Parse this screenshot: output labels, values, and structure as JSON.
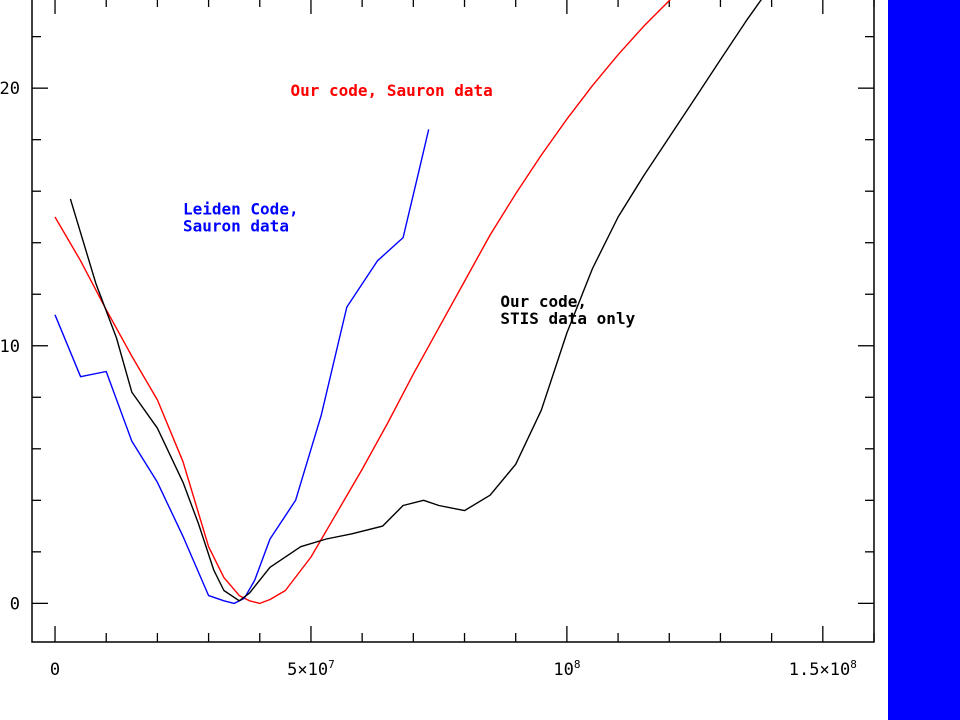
{
  "chart_data": {
    "type": "line",
    "title": "",
    "xlabel": "",
    "ylabel": "",
    "xlim": [
      -4500000,
      160000000
    ],
    "ylim": [
      -1.5,
      23.5
    ],
    "grid": false,
    "legend": "none (inline text annotations)",
    "x_ticks": [
      {
        "value": 0,
        "base": "0",
        "exp": ""
      },
      {
        "value": 50000000,
        "base": "5×10",
        "exp": "7"
      },
      {
        "value": 100000000,
        "base": "10",
        "exp": "8"
      },
      {
        "value": 150000000,
        "base": "1.5×10",
        "exp": "8"
      }
    ],
    "x_minor_step": 10000000,
    "y_ticks": [
      {
        "value": 0,
        "label": "0"
      },
      {
        "value": 10,
        "label": "10"
      },
      {
        "value": 20,
        "label": "20"
      }
    ],
    "y_minor_step": 2,
    "series": [
      {
        "name": "Our code, Sauron data",
        "color": "#ff0000",
        "x": [
          0,
          5000000,
          10000000,
          15000000,
          20000000,
          25000000,
          30000000,
          33000000,
          36000000,
          38000000,
          40000000,
          42000000,
          45000000,
          50000000,
          55000000,
          60000000,
          65000000,
          70000000,
          75000000,
          80000000,
          85000000,
          90000000,
          95000000,
          100000000,
          105000000,
          110000000,
          115000000,
          120000000,
          121000000
        ],
        "y": [
          15.0,
          13.3,
          11.4,
          9.6,
          7.9,
          5.5,
          2.2,
          1.0,
          0.3,
          0.1,
          0.0,
          0.15,
          0.5,
          1.8,
          3.5,
          5.2,
          7.0,
          8.9,
          10.7,
          12.5,
          14.3,
          15.9,
          17.4,
          18.8,
          20.1,
          21.3,
          22.4,
          23.4,
          23.6
        ]
      },
      {
        "name": "Leiden Code, Sauron data",
        "color": "#0000ff",
        "x": [
          0,
          5000000,
          10000000,
          15000000,
          20000000,
          25000000,
          30000000,
          33000000,
          35000000,
          37000000,
          39000000,
          42000000,
          47000000,
          52000000,
          57000000,
          63000000,
          68000000,
          71000000,
          73000000
        ],
        "y": [
          11.2,
          8.8,
          9.0,
          6.3,
          4.7,
          2.6,
          0.3,
          0.1,
          0.0,
          0.2,
          0.9,
          2.5,
          4.0,
          7.3,
          11.5,
          13.3,
          14.2,
          16.7,
          18.4
        ]
      },
      {
        "name": "Our code, STIS data only",
        "color": "#000000",
        "x": [
          3000000,
          8000000,
          12000000,
          15000000,
          20000000,
          25000000,
          28000000,
          31000000,
          33000000,
          36000000,
          38000000,
          42000000,
          48000000,
          53000000,
          58000000,
          64000000,
          68000000,
          72000000,
          75000000,
          80000000,
          85000000,
          90000000,
          95000000,
          100000000,
          105000000,
          110000000,
          115000000,
          120000000,
          125000000,
          130000000,
          135000000,
          140000000
        ],
        "y": [
          15.7,
          12.4,
          10.3,
          8.2,
          6.8,
          4.7,
          3.1,
          1.3,
          0.5,
          0.1,
          0.4,
          1.4,
          2.2,
          2.5,
          2.7,
          3.0,
          3.8,
          4.0,
          3.8,
          3.6,
          4.2,
          5.4,
          7.5,
          10.5,
          13.0,
          15.0,
          16.6,
          18.1,
          19.6,
          21.1,
          22.6,
          24.0
        ]
      }
    ],
    "annotations": [
      {
        "lines": [
          "Our code, Sauron data"
        ],
        "color": "#ff0000",
        "x": 46000000,
        "y": 19.7
      },
      {
        "lines": [
          "Leiden Code,",
          "Sauron data"
        ],
        "color": "#0000ff",
        "x": 25000000,
        "y": 15.1
      },
      {
        "lines": [
          "Our code,",
          "STIS data only"
        ],
        "color": "#000000",
        "x": 87000000,
        "y": 11.5
      }
    ],
    "side_band_color": "#0000ff"
  }
}
